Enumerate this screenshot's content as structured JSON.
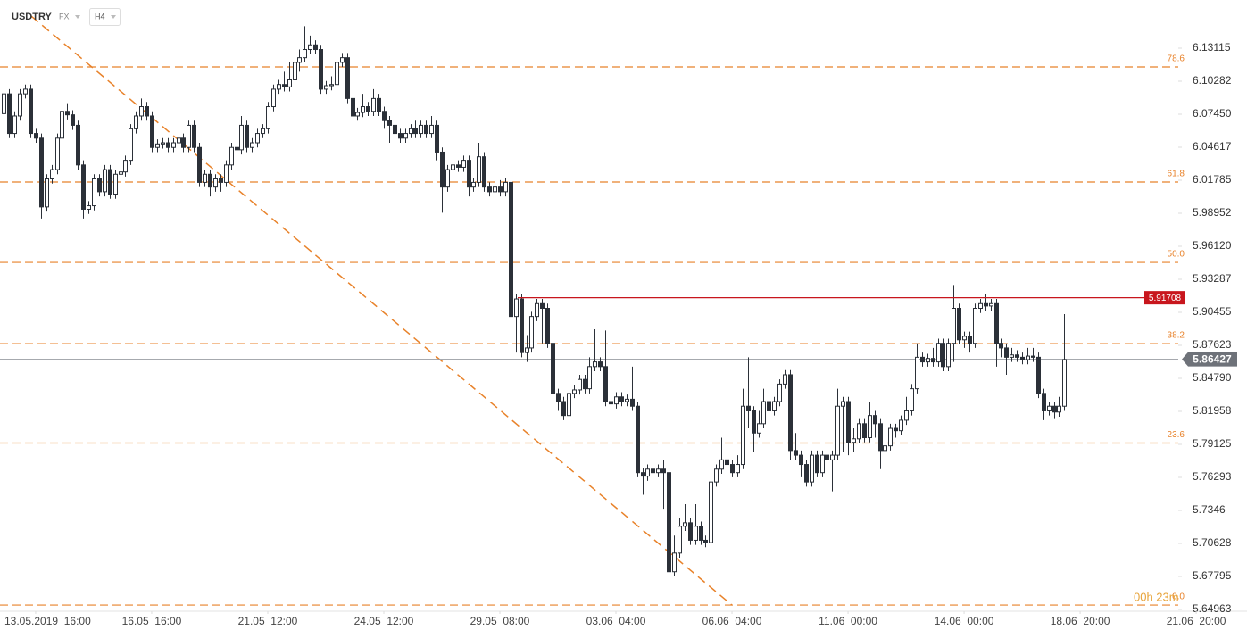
{
  "header": {
    "symbol": "USDTRY",
    "market": "FX",
    "timeframe": "H4"
  },
  "chart_data": {
    "type": "candlestick",
    "up_color": "#ffffff",
    "down_color": "#2b3038",
    "wick_color": "#2b3038",
    "xlim": [
      -0.76,
      222.6
    ],
    "ylim": [
      5.6481,
      6.1725
    ],
    "xticks": [
      {
        "value": 6,
        "label": "13.05.2019  16:00"
      },
      {
        "value": 28,
        "label": "16.05  16:00"
      },
      {
        "value": 50,
        "label": "21.05  12:00"
      },
      {
        "value": 72,
        "label": "24.05  12:00"
      },
      {
        "value": 94,
        "label": "29.05  08:00"
      },
      {
        "value": 116,
        "label": "03.06  04:00"
      },
      {
        "value": 138,
        "label": "06.06  04:00"
      },
      {
        "value": 160,
        "label": "11.06  00:00"
      },
      {
        "value": 182,
        "label": "14.06  00:00"
      },
      {
        "value": 204,
        "label": "18.06  20:00"
      },
      {
        "value": 226,
        "label": "21.06  20:00"
      }
    ],
    "yticks": [
      6.13115,
      6.10282,
      {
        "value": 6.0745,
        "label": "6.07450"
      },
      6.04617,
      6.01785,
      5.98952,
      {
        "value": 5.9612,
        "label": "5.96120"
      },
      5.93287,
      5.90455,
      5.87623,
      {
        "value": 5.8479,
        "label": "5.84790"
      },
      5.81958,
      5.79125,
      5.76293,
      5.7346,
      5.70628,
      5.67795,
      5.64963
    ],
    "fib_color": "#e8822a",
    "fib_levels": [
      {
        "label": "78.6",
        "price": 6.1151
      },
      {
        "label": "61.8",
        "price": 6.0163
      },
      {
        "label": "50.0",
        "price": 5.9474
      },
      {
        "label": "38.2",
        "price": 5.8777
      },
      {
        "label": "23.6",
        "price": 5.7924
      },
      {
        "label": "0.0",
        "price": 5.6534
      }
    ],
    "trendline": [
      [
        5.16,
        6.1587
      ],
      [
        138.0,
        5.6533
      ]
    ],
    "resistance": {
      "price": 5.91708,
      "color": "#c8161d"
    },
    "last_price": 5.86427,
    "countdown": "00h 23m",
    "candles": [
      [
        6.075,
        6.1,
        6.06,
        6.092
      ],
      [
        6.092,
        6.096,
        6.054,
        6.058
      ],
      [
        6.058,
        6.077,
        6.054,
        6.073
      ],
      [
        6.073,
        6.096,
        6.069,
        6.092
      ],
      [
        6.092,
        6.1,
        6.088,
        6.096
      ],
      [
        6.096,
        6.1,
        6.054,
        6.058
      ],
      [
        6.058,
        6.062,
        6.05,
        6.054
      ],
      [
        6.054,
        6.058,
        5.985,
        5.995
      ],
      [
        5.995,
        6.023,
        5.991,
        6.019
      ],
      [
        6.019,
        6.031,
        6.015,
        6.027
      ],
      [
        6.027,
        6.058,
        6.023,
        6.054
      ],
      [
        6.054,
        6.081,
        6.05,
        6.077
      ],
      [
        6.077,
        6.084,
        6.07,
        6.074
      ],
      [
        6.074,
        6.078,
        6.061,
        6.065
      ],
      [
        6.065,
        6.069,
        6.027,
        6.031
      ],
      [
        6.031,
        6.035,
        5.985,
        5.993
      ],
      [
        5.993,
        6.0,
        5.989,
        5.996
      ],
      [
        5.996,
        6.023,
        5.992,
        6.019
      ],
      [
        6.019,
        6.023,
        6.004,
        6.008
      ],
      [
        6.008,
        6.031,
        6.004,
        6.027
      ],
      [
        6.027,
        6.031,
        6.002,
        6.006
      ],
      [
        6.006,
        6.027,
        6.002,
        6.023
      ],
      [
        6.023,
        6.029,
        6.019,
        6.025
      ],
      [
        6.025,
        6.039,
        6.021,
        6.035
      ],
      [
        6.035,
        6.066,
        6.031,
        6.062
      ],
      [
        6.062,
        6.077,
        6.058,
        6.073
      ],
      [
        6.073,
        6.088,
        6.069,
        6.081
      ],
      [
        6.081,
        6.085,
        6.069,
        6.073
      ],
      [
        6.073,
        6.077,
        6.042,
        6.046
      ],
      [
        6.046,
        6.053,
        6.042,
        6.049
      ],
      [
        6.049,
        6.054,
        6.045,
        6.05
      ],
      [
        6.05,
        6.054,
        6.042,
        6.046
      ],
      [
        6.046,
        6.054,
        6.042,
        6.05
      ],
      [
        6.05,
        6.058,
        6.046,
        6.054
      ],
      [
        6.054,
        6.058,
        6.042,
        6.046
      ],
      [
        6.046,
        6.069,
        6.042,
        6.065
      ],
      [
        6.065,
        6.069,
        6.042,
        6.046
      ],
      [
        6.046,
        6.05,
        6.012,
        6.016
      ],
      [
        6.016,
        6.027,
        6.012,
        6.023
      ],
      [
        6.023,
        6.027,
        6.004,
        6.012
      ],
      [
        6.012,
        6.023,
        6.008,
        6.019
      ],
      [
        6.019,
        6.023,
        6.008,
        6.016
      ],
      [
        6.016,
        6.035,
        6.012,
        6.031
      ],
      [
        6.031,
        6.05,
        6.027,
        6.046
      ],
      [
        6.046,
        6.058,
        6.04,
        6.044
      ],
      [
        6.044,
        6.073,
        6.04,
        6.065
      ],
      [
        6.065,
        6.069,
        6.042,
        6.046
      ],
      [
        6.046,
        6.054,
        6.042,
        6.05
      ],
      [
        6.05,
        6.062,
        6.046,
        6.058
      ],
      [
        6.058,
        6.066,
        6.054,
        6.062
      ],
      [
        6.062,
        6.085,
        6.058,
        6.081
      ],
      [
        6.081,
        6.1,
        6.077,
        6.096
      ],
      [
        6.096,
        6.104,
        6.092,
        6.1
      ],
      [
        6.1,
        6.111,
        6.094,
        6.098
      ],
      [
        6.098,
        6.119,
        6.094,
        6.104
      ],
      [
        6.104,
        6.123,
        6.1,
        6.119
      ],
      [
        6.119,
        6.13,
        6.111,
        6.123
      ],
      [
        6.123,
        6.15,
        6.119,
        6.13
      ],
      [
        6.13,
        6.142,
        6.126,
        6.134
      ],
      [
        6.134,
        6.138,
        6.126,
        6.13
      ],
      [
        6.13,
        6.134,
        6.092,
        6.096
      ],
      [
        6.096,
        6.103,
        6.092,
        6.099
      ],
      [
        6.099,
        6.107,
        6.095,
        6.1
      ],
      [
        6.1,
        6.123,
        6.096,
        6.119
      ],
      [
        6.119,
        6.127,
        6.115,
        6.123
      ],
      [
        6.123,
        6.127,
        6.084,
        6.088
      ],
      [
        6.088,
        6.092,
        6.065,
        6.073
      ],
      [
        6.073,
        6.08,
        6.069,
        6.076
      ],
      [
        6.076,
        6.092,
        6.072,
        6.081
      ],
      [
        6.081,
        6.085,
        6.073,
        6.077
      ],
      [
        6.077,
        6.096,
        6.073,
        6.088
      ],
      [
        6.088,
        6.092,
        6.073,
        6.077
      ],
      [
        6.077,
        6.081,
        6.062,
        6.069
      ],
      [
        6.069,
        6.073,
        6.05,
        6.065
      ],
      [
        6.065,
        6.069,
        6.039,
        6.058
      ],
      [
        6.058,
        6.062,
        6.05,
        6.054
      ],
      [
        6.054,
        6.062,
        6.05,
        6.058
      ],
      [
        6.058,
        6.066,
        6.054,
        6.062
      ],
      [
        6.062,
        6.069,
        6.054,
        6.058
      ],
      [
        6.058,
        6.069,
        6.054,
        6.065
      ],
      [
        6.065,
        6.069,
        6.054,
        6.058
      ],
      [
        6.058,
        6.073,
        6.054,
        6.065
      ],
      [
        6.065,
        6.069,
        6.035,
        6.042
      ],
      [
        6.042,
        6.046,
        5.99,
        6.012
      ],
      [
        6.012,
        6.031,
        6.008,
        6.027
      ],
      [
        6.027,
        6.035,
        6.023,
        6.031
      ],
      [
        6.031,
        6.035,
        6.025,
        6.029
      ],
      [
        6.029,
        6.039,
        6.025,
        6.035
      ],
      [
        6.035,
        6.039,
        6.004,
        6.012
      ],
      [
        6.012,
        6.02,
        6.008,
        6.016
      ],
      [
        6.016,
        6.05,
        6.012,
        6.038
      ],
      [
        6.038,
        6.042,
        6.008,
        6.012
      ],
      [
        6.012,
        6.016,
        6.004,
        6.008
      ],
      [
        6.008,
        6.016,
        6.004,
        6.012
      ],
      [
        6.012,
        6.018,
        6.004,
        6.008
      ],
      [
        6.008,
        6.02,
        6.004,
        6.016
      ],
      [
        6.016,
        6.02,
        5.897,
        5.901
      ],
      [
        5.901,
        5.92,
        5.87,
        5.916
      ],
      [
        5.916,
        5.92,
        5.866,
        5.87
      ],
      [
        5.87,
        5.885,
        5.862,
        5.874
      ],
      [
        5.874,
        5.905,
        5.87,
        5.901
      ],
      [
        5.901,
        5.916,
        5.897,
        5.912
      ],
      [
        5.912,
        5.916,
        5.878,
        5.908
      ],
      [
        5.908,
        5.912,
        5.874,
        5.878
      ],
      [
        5.878,
        5.882,
        5.831,
        5.835
      ],
      [
        5.835,
        5.839,
        5.82,
        5.828
      ],
      [
        5.828,
        5.832,
        5.812,
        5.816
      ],
      [
        5.816,
        5.839,
        5.812,
        5.835
      ],
      [
        5.835,
        5.842,
        5.831,
        5.838
      ],
      [
        5.838,
        5.851,
        5.834,
        5.847
      ],
      [
        5.847,
        5.851,
        5.835,
        5.839
      ],
      [
        5.839,
        5.866,
        5.835,
        5.858
      ],
      [
        5.858,
        5.89,
        5.854,
        5.862
      ],
      [
        5.862,
        5.866,
        5.854,
        5.858
      ],
      [
        5.858,
        5.889,
        5.824,
        5.828
      ],
      [
        5.828,
        5.832,
        5.822,
        5.826
      ],
      [
        5.826,
        5.836,
        5.822,
        5.832
      ],
      [
        5.832,
        5.836,
        5.824,
        5.828
      ],
      [
        5.828,
        5.834,
        5.824,
        5.83
      ],
      [
        5.83,
        5.858,
        5.82,
        5.824
      ],
      [
        5.824,
        5.828,
        5.763,
        5.767
      ],
      [
        5.767,
        5.771,
        5.748,
        5.764
      ],
      [
        5.764,
        5.774,
        5.76,
        5.77
      ],
      [
        5.77,
        5.774,
        5.763,
        5.767
      ],
      [
        5.767,
        5.774,
        5.763,
        5.77
      ],
      [
        5.77,
        5.778,
        5.736,
        5.767
      ],
      [
        5.767,
        5.771,
        5.653,
        5.682
      ],
      [
        5.682,
        5.713,
        5.678,
        5.698
      ],
      [
        5.698,
        5.728,
        5.694,
        5.721
      ],
      [
        5.721,
        5.74,
        5.717,
        5.724
      ],
      [
        5.724,
        5.728,
        5.705,
        5.709
      ],
      [
        5.709,
        5.74,
        5.705,
        5.721
      ],
      [
        5.721,
        5.725,
        5.705,
        5.709
      ],
      [
        5.709,
        5.713,
        5.703,
        5.707
      ],
      [
        5.707,
        5.763,
        5.703,
        5.759
      ],
      [
        5.759,
        5.774,
        5.755,
        5.77
      ],
      [
        5.77,
        5.797,
        5.766,
        5.778
      ],
      [
        5.778,
        5.786,
        5.77,
        5.774
      ],
      [
        5.774,
        5.778,
        5.763,
        5.767
      ],
      [
        5.767,
        5.782,
        5.763,
        5.774
      ],
      [
        5.774,
        5.839,
        5.77,
        5.824
      ],
      [
        5.824,
        5.866,
        5.805,
        5.82
      ],
      [
        5.82,
        5.824,
        5.785,
        5.801
      ],
      [
        5.801,
        5.82,
        5.797,
        5.809
      ],
      [
        5.809,
        5.839,
        5.805,
        5.828
      ],
      [
        5.828,
        5.832,
        5.816,
        5.82
      ],
      [
        5.82,
        5.832,
        5.816,
        5.828
      ],
      [
        5.828,
        5.847,
        5.824,
        5.843
      ],
      [
        5.843,
        5.855,
        5.839,
        5.851
      ],
      [
        5.851,
        5.855,
        5.778,
        5.786
      ],
      [
        5.786,
        5.801,
        5.778,
        5.782
      ],
      [
        5.782,
        5.786,
        5.763,
        5.774
      ],
      [
        5.774,
        5.778,
        5.755,
        5.759
      ],
      [
        5.759,
        5.786,
        5.755,
        5.782
      ],
      [
        5.782,
        5.786,
        5.763,
        5.767
      ],
      [
        5.767,
        5.786,
        5.763,
        5.782
      ],
      [
        5.782,
        5.786,
        5.77,
        5.778
      ],
      [
        5.778,
        5.786,
        5.751,
        5.782
      ],
      [
        5.782,
        5.839,
        5.778,
        5.824
      ],
      [
        5.824,
        5.832,
        5.785,
        5.828
      ],
      [
        5.828,
        5.832,
        5.782,
        5.793
      ],
      [
        5.793,
        5.805,
        5.785,
        5.796
      ],
      [
        5.796,
        5.813,
        5.792,
        5.809
      ],
      [
        5.809,
        5.813,
        5.793,
        5.797
      ],
      [
        5.797,
        5.828,
        5.793,
        5.816
      ],
      [
        5.816,
        5.82,
        5.797,
        5.809
      ],
      [
        5.809,
        5.813,
        5.77,
        5.786
      ],
      [
        5.786,
        5.801,
        5.778,
        5.79
      ],
      [
        5.79,
        5.809,
        5.786,
        5.805
      ],
      [
        5.805,
        5.809,
        5.797,
        5.803
      ],
      [
        5.803,
        5.816,
        5.799,
        5.812
      ],
      [
        5.812,
        5.832,
        5.808,
        5.82
      ],
      [
        5.82,
        5.843,
        5.816,
        5.839
      ],
      [
        5.839,
        5.878,
        5.835,
        5.866
      ],
      [
        5.866,
        5.87,
        5.858,
        5.862
      ],
      [
        5.862,
        5.869,
        5.858,
        5.865
      ],
      [
        5.865,
        5.874,
        5.858,
        5.862
      ],
      [
        5.862,
        5.882,
        5.858,
        5.878
      ],
      [
        5.878,
        5.882,
        5.854,
        5.858
      ],
      [
        5.858,
        5.882,
        5.854,
        5.878
      ],
      [
        5.878,
        5.928,
        5.862,
        5.908
      ],
      [
        5.908,
        5.912,
        5.877,
        5.881
      ],
      [
        5.881,
        5.888,
        5.874,
        5.884
      ],
      [
        5.884,
        5.888,
        5.87,
        5.878
      ],
      [
        5.878,
        5.912,
        5.874,
        5.908
      ],
      [
        5.908,
        5.916,
        5.904,
        5.912
      ],
      [
        5.912,
        5.92,
        5.906,
        5.91
      ],
      [
        5.91,
        5.916,
        5.906,
        5.912
      ],
      [
        5.912,
        5.916,
        5.858,
        5.878
      ],
      [
        5.878,
        5.882,
        5.866,
        5.874
      ],
      [
        5.874,
        5.878,
        5.851,
        5.866
      ],
      [
        5.866,
        5.874,
        5.862,
        5.868
      ],
      [
        5.868,
        5.872,
        5.862,
        5.866
      ],
      [
        5.866,
        5.87,
        5.86,
        5.864
      ],
      [
        5.864,
        5.874,
        5.86,
        5.867
      ],
      [
        5.867,
        5.874,
        5.862,
        5.866
      ],
      [
        5.866,
        5.87,
        5.831,
        5.835
      ],
      [
        5.835,
        5.839,
        5.812,
        5.82
      ],
      [
        5.82,
        5.828,
        5.816,
        5.824
      ],
      [
        5.824,
        5.828,
        5.813,
        5.819
      ],
      [
        5.819,
        5.832,
        5.815,
        5.824
      ],
      [
        5.824,
        5.903,
        5.82,
        5.864
      ]
    ]
  }
}
